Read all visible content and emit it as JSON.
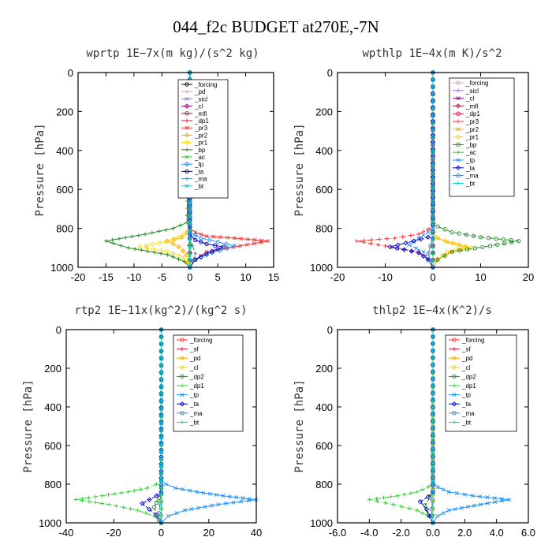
{
  "title": "044_f2c  BUDGET at270E,-7N",
  "chart_data": [
    {
      "type": "line",
      "title": "wprtp   1E−7x(m kg)/(s^2 kg)",
      "ylabel": "Pressure [hPa]",
      "xlim": [
        -20,
        15
      ],
      "xticks": [
        -20,
        -15,
        -10,
        -5,
        0,
        5,
        10,
        15
      ],
      "xtick_labels": [
        "-20",
        "-15",
        "-10",
        "-5",
        "0",
        "5",
        "10",
        "15"
      ],
      "ylim": [
        0,
        1000
      ],
      "yticks": [
        0,
        200,
        400,
        600,
        800,
        1000
      ],
      "ytick_labels": [
        "0",
        "200",
        "400",
        "600",
        "800",
        "1000"
      ],
      "legend_position": "top-right",
      "series": [
        {
          "name": "_forcing",
          "color": "#000000",
          "x": [
            0,
            0
          ],
          "y": [
            0,
            1000
          ]
        },
        {
          "name": "_pd",
          "color": "#c8a2c8",
          "x": [
            0,
            0
          ],
          "y": [
            0,
            1000
          ]
        },
        {
          "name": "_sicl",
          "color": "#9370db",
          "x": [
            0,
            0
          ],
          "y": [
            0,
            1000
          ]
        },
        {
          "name": "_cl",
          "color": "#800080",
          "x": [
            0,
            0
          ],
          "y": [
            0,
            1000
          ]
        },
        {
          "name": "_mfl",
          "color": "#8b1a4a",
          "x": [
            0,
            0
          ],
          "y": [
            0,
            1000
          ]
        },
        {
          "name": "_dp1",
          "color": "#dc143c",
          "x": [
            0,
            0
          ],
          "y": [
            0,
            1000
          ]
        },
        {
          "name": "_pr3",
          "color": "#ff3030",
          "x": [
            0,
            0,
            0,
            1,
            3,
            8,
            14,
            9,
            3,
            1,
            0
          ],
          "y": [
            0,
            780,
            800,
            820,
            840,
            850,
            865,
            890,
            920,
            960,
            1000
          ]
        },
        {
          "name": "_pr2",
          "color": "#ffa500",
          "x": [
            0,
            0,
            -0.5,
            -1.5,
            -4,
            -2,
            -0.5,
            -0.3,
            0
          ],
          "y": [
            0,
            790,
            820,
            845,
            865,
            895,
            935,
            975,
            1000
          ]
        },
        {
          "name": "_pr1",
          "color": "#ffd700",
          "x": [
            0,
            0,
            -1,
            -3,
            -9,
            -4,
            -1,
            -0.5,
            0
          ],
          "y": [
            0,
            800,
            830,
            860,
            895,
            920,
            950,
            975,
            1000
          ]
        },
        {
          "name": "_bp",
          "color": "#228b22",
          "x": [
            0,
            -0.5,
            -3,
            -8,
            -15,
            -11,
            -4,
            -1,
            0
          ],
          "y": [
            0,
            770,
            800,
            830,
            865,
            900,
            935,
            970,
            1000
          ]
        },
        {
          "name": "_ac",
          "color": "#32cd32",
          "x": [
            0,
            0,
            0,
            0,
            0
          ],
          "y": [
            0,
            800,
            900,
            950,
            1000
          ]
        },
        {
          "name": "_tp",
          "color": "#1e90ff",
          "x": [
            0,
            0,
            2,
            5,
            8,
            4,
            1,
            0
          ],
          "y": [
            0,
            820,
            850,
            870,
            890,
            925,
            960,
            1000
          ]
        },
        {
          "name": "_ta",
          "color": "#0000cd",
          "x": [
            0,
            0,
            1,
            3,
            6,
            3,
            1,
            0
          ],
          "y": [
            0,
            830,
            860,
            880,
            895,
            930,
            960,
            1000
          ]
        },
        {
          "name": "_ma",
          "color": "#4682b4",
          "x": [
            0,
            0,
            0.5,
            1,
            0.5,
            0
          ],
          "y": [
            0,
            850,
            890,
            930,
            965,
            1000
          ]
        },
        {
          "name": "_bt",
          "color": "#00cccc",
          "x": [
            0,
            0
          ],
          "y": [
            0,
            1000
          ]
        }
      ]
    },
    {
      "type": "line",
      "title": "wpthlp   1E−4x(m K)/s^2",
      "ylabel": "Pressure [hPa]",
      "xlim": [
        -20,
        20
      ],
      "xticks": [
        -20,
        -10,
        0,
        10,
        20
      ],
      "xtick_labels": [
        "-20",
        "-10",
        "0",
        "10",
        "20"
      ],
      "ylim": [
        0,
        1000
      ],
      "yticks": [
        0,
        200,
        400,
        600,
        800,
        1000
      ],
      "ytick_labels": [
        "0",
        "200",
        "400",
        "600",
        "800",
        "1000"
      ],
      "legend_position": "top-right",
      "series": [
        {
          "name": "_forcing",
          "color": "#c8a2c8",
          "x": [
            0,
            0
          ],
          "y": [
            0,
            1000
          ]
        },
        {
          "name": "_sicl",
          "color": "#9370db",
          "x": [
            0,
            0
          ],
          "y": [
            0,
            1000
          ]
        },
        {
          "name": "_cl",
          "color": "#800080",
          "x": [
            0,
            0
          ],
          "y": [
            0,
            1000
          ]
        },
        {
          "name": "_mfl",
          "color": "#8b1a4a",
          "x": [
            0,
            0
          ],
          "y": [
            0,
            1000
          ]
        },
        {
          "name": "_dp1",
          "color": "#dc143c",
          "x": [
            0,
            0
          ],
          "y": [
            0,
            1000
          ]
        },
        {
          "name": "_pr3",
          "color": "#ff3030",
          "x": [
            0,
            0,
            -1,
            -3,
            -8,
            -16,
            -10,
            -3,
            -1,
            0
          ],
          "y": [
            0,
            780,
            805,
            830,
            850,
            865,
            890,
            920,
            960,
            1000
          ]
        },
        {
          "name": "_pr2",
          "color": "#ffa500",
          "x": [
            0,
            0,
            1,
            3,
            7,
            4,
            1,
            0
          ],
          "y": [
            0,
            820,
            850,
            870,
            895,
            920,
            960,
            1000
          ]
        },
        {
          "name": "_pr1",
          "color": "#ffd700",
          "x": [
            0,
            0,
            1,
            4,
            8,
            3,
            1,
            0
          ],
          "y": [
            0,
            820,
            850,
            875,
            900,
            920,
            955,
            1000
          ]
        },
        {
          "name": "_bp",
          "color": "#228b22",
          "x": [
            0,
            0,
            1,
            4,
            10,
            18,
            12,
            4,
            1,
            0
          ],
          "y": [
            0,
            760,
            790,
            820,
            845,
            865,
            890,
            920,
            960,
            1000
          ]
        },
        {
          "name": "_ac",
          "color": "#32cd32",
          "x": [
            0,
            0,
            0,
            0
          ],
          "y": [
            0,
            800,
            900,
            1000
          ]
        },
        {
          "name": "_tp",
          "color": "#1e90ff",
          "x": [
            0,
            0,
            -1,
            -3,
            -5,
            -2,
            -1,
            0
          ],
          "y": [
            0,
            790,
            820,
            850,
            885,
            920,
            960,
            1000
          ]
        },
        {
          "name": "_ta",
          "color": "#0000cd",
          "x": [
            0,
            0,
            -1,
            -4,
            -9,
            -3,
            -1,
            0
          ],
          "y": [
            0,
            820,
            845,
            865,
            895,
            925,
            960,
            1000
          ]
        },
        {
          "name": "_ma",
          "color": "#4682b4",
          "x": [
            0,
            0,
            -0.5,
            -1,
            -0.5,
            0
          ],
          "y": [
            0,
            850,
            890,
            930,
            965,
            1000
          ]
        },
        {
          "name": "_bt",
          "color": "#00cccc",
          "x": [
            0,
            0
          ],
          "y": [
            0,
            1000
          ]
        }
      ]
    },
    {
      "type": "line",
      "title": "rtp2   1E−11x(kg^2)/(kg^2 s)",
      "ylabel": "Pressure [hPa]",
      "xlim": [
        -40,
        40
      ],
      "xticks": [
        -40,
        -20,
        0,
        20,
        40
      ],
      "xtick_labels": [
        "-40",
        "-20",
        "0",
        "20",
        "40"
      ],
      "ylim": [
        0,
        1000
      ],
      "yticks": [
        0,
        200,
        400,
        600,
        800,
        1000
      ],
      "ytick_labels": [
        "0",
        "200",
        "400",
        "600",
        "800",
        "1000"
      ],
      "legend_position": "top-right",
      "series": [
        {
          "name": "_forcing",
          "color": "#ff3030",
          "x": [
            0,
            0
          ],
          "y": [
            0,
            1000
          ]
        },
        {
          "name": "_sf",
          "color": "#dc143c",
          "x": [
            0,
            0
          ],
          "y": [
            0,
            1000
          ]
        },
        {
          "name": "_pd",
          "color": "#ffa500",
          "x": [
            0,
            0
          ],
          "y": [
            0,
            1000
          ]
        },
        {
          "name": "_cl",
          "color": "#ffd700",
          "x": [
            0,
            0
          ],
          "y": [
            0,
            1000
          ]
        },
        {
          "name": "_dp2",
          "color": "#228b22",
          "x": [
            0,
            0,
            -1,
            -3,
            -2,
            -1,
            0
          ],
          "y": [
            0,
            820,
            870,
            920,
            960,
            985,
            1000
          ]
        },
        {
          "name": "_dp1",
          "color": "#32cd32",
          "x": [
            0,
            0,
            -2,
            -6,
            -14,
            -25,
            -36,
            -22,
            -10,
            -3,
            0
          ],
          "y": [
            0,
            780,
            800,
            820,
            840,
            860,
            880,
            905,
            935,
            965,
            1000
          ]
        },
        {
          "name": "_tp",
          "color": "#1e90ff",
          "x": [
            0,
            0,
            2,
            6,
            15,
            26,
            40,
            24,
            10,
            3,
            0
          ],
          "y": [
            0,
            780,
            800,
            820,
            840,
            860,
            880,
            905,
            935,
            965,
            1000
          ]
        },
        {
          "name": "_ta",
          "color": "#0000cd",
          "x": [
            0,
            0,
            -2,
            -5,
            -8,
            -5,
            -2,
            0
          ],
          "y": [
            0,
            840,
            860,
            880,
            900,
            930,
            960,
            1000
          ]
        },
        {
          "name": "_ma",
          "color": "#4682b4",
          "x": [
            0,
            0,
            -0.5,
            -1,
            0
          ],
          "y": [
            0,
            850,
            900,
            950,
            1000
          ]
        },
        {
          "name": "_bt",
          "color": "#00cccc",
          "x": [
            0,
            0
          ],
          "y": [
            0,
            1000
          ]
        }
      ]
    },
    {
      "type": "line",
      "title": "thlp2   1E−4x(K^2)/s",
      "ylabel": "Pressure [hPa]",
      "xlim": [
        -6,
        6
      ],
      "xticks": [
        -6,
        -4,
        -2,
        0,
        2,
        4,
        6
      ],
      "xtick_labels": [
        "-6.0",
        "-4.0",
        "-2.0",
        "0.0",
        "2.0",
        "4.0",
        "6.0"
      ],
      "ylim": [
        0,
        1000
      ],
      "yticks": [
        0,
        200,
        400,
        600,
        800,
        1000
      ],
      "ytick_labels": [
        "0",
        "200",
        "400",
        "600",
        "800",
        "1000"
      ],
      "legend_position": "top-right",
      "series": [
        {
          "name": "_forcing",
          "color": "#ff3030",
          "x": [
            0,
            0
          ],
          "y": [
            0,
            1000
          ]
        },
        {
          "name": "_sf",
          "color": "#dc143c",
          "x": [
            0,
            0
          ],
          "y": [
            0,
            1000
          ]
        },
        {
          "name": "_pd",
          "color": "#ffa500",
          "x": [
            0,
            0
          ],
          "y": [
            0,
            1000
          ]
        },
        {
          "name": "_cl",
          "color": "#ffd700",
          "x": [
            0,
            0
          ],
          "y": [
            0,
            1000
          ]
        },
        {
          "name": "_dp2",
          "color": "#228b22",
          "x": [
            0,
            0,
            -0.2,
            -0.5,
            -0.3,
            0
          ],
          "y": [
            0,
            830,
            870,
            910,
            960,
            1000
          ]
        },
        {
          "name": "_dp1",
          "color": "#32cd32",
          "x": [
            0,
            0,
            -0.3,
            -1,
            -2.2,
            -4,
            -2.5,
            -1,
            -0.3,
            0
          ],
          "y": [
            0,
            790,
            815,
            840,
            860,
            880,
            905,
            935,
            965,
            1000
          ]
        },
        {
          "name": "_tp",
          "color": "#1e90ff",
          "x": [
            0,
            0,
            0.3,
            1,
            2.5,
            4.8,
            3,
            1,
            0.3,
            0
          ],
          "y": [
            0,
            790,
            815,
            840,
            860,
            880,
            905,
            935,
            965,
            1000
          ]
        },
        {
          "name": "_ta",
          "color": "#0000cd",
          "x": [
            0,
            0,
            -0.3,
            -0.8,
            -0.4,
            0
          ],
          "y": [
            0,
            840,
            865,
            890,
            930,
            1000
          ]
        },
        {
          "name": "_ma",
          "color": "#4682b4",
          "x": [
            0,
            0,
            -0.1,
            0
          ],
          "y": [
            0,
            880,
            930,
            1000
          ]
        },
        {
          "name": "_bt",
          "color": "#00cccc",
          "x": [
            0,
            0
          ],
          "y": [
            0,
            1000
          ]
        }
      ]
    }
  ]
}
